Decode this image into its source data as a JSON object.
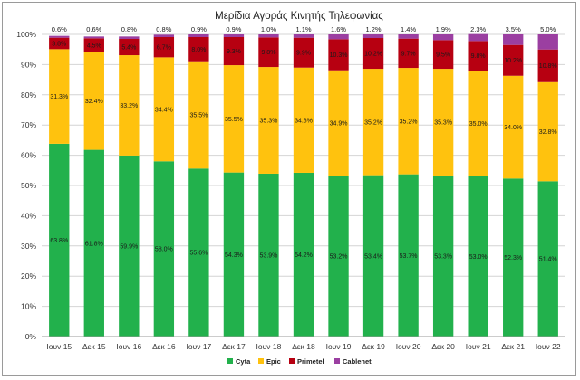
{
  "chart_data": {
    "type": "bar",
    "stacked": true,
    "percent": true,
    "title": "Μερίδια Αγοράς Κινητής Τηλεφωνίας",
    "xlabel": "",
    "ylabel": "",
    "ylim": [
      0,
      100
    ],
    "yticks": [
      "0%",
      "10%",
      "20%",
      "30%",
      "40%",
      "50%",
      "60%",
      "70%",
      "80%",
      "90%",
      "100%"
    ],
    "categories": [
      "Ιουν 15",
      "Δεκ 15",
      "Ιουν 16",
      "Δεκ 16",
      "Ιουν 17",
      "Δεκ 17",
      "Ιουν 18",
      "Δεκ 18",
      "Ιουν 19",
      "Δεκ 19",
      "Ιουν 20",
      "Δεκ 20",
      "Ιουν 21",
      "Δεκ 21",
      "Ιουν 22"
    ],
    "series": [
      {
        "name": "Cyta",
        "color": "#22b14c",
        "values": [
          63.8,
          61.8,
          59.9,
          58.0,
          55.6,
          54.3,
          53.9,
          54.2,
          53.2,
          53.4,
          53.7,
          53.3,
          53.0,
          52.3,
          51.4
        ]
      },
      {
        "name": "Epic",
        "color": "#ffc20e",
        "values": [
          31.3,
          32.4,
          33.2,
          34.4,
          35.5,
          35.5,
          35.3,
          34.8,
          34.9,
          35.2,
          35.2,
          35.3,
          35.0,
          34.0,
          32.8
        ]
      },
      {
        "name": "Primetel",
        "color": "#b70011",
        "values": [
          3.8,
          4.5,
          5.4,
          6.7,
          8.0,
          9.3,
          9.8,
          9.9,
          10.3,
          10.2,
          9.7,
          9.5,
          9.8,
          10.2,
          10.8
        ]
      },
      {
        "name": "Cablenet",
        "color": "#9b3fa1",
        "values": [
          0.6,
          0.6,
          0.8,
          0.8,
          0.9,
          0.9,
          1.0,
          1.1,
          1.6,
          1.2,
          1.4,
          1.9,
          2.3,
          3.5,
          5.0
        ]
      }
    ],
    "grid": true,
    "legend": "bottom"
  }
}
